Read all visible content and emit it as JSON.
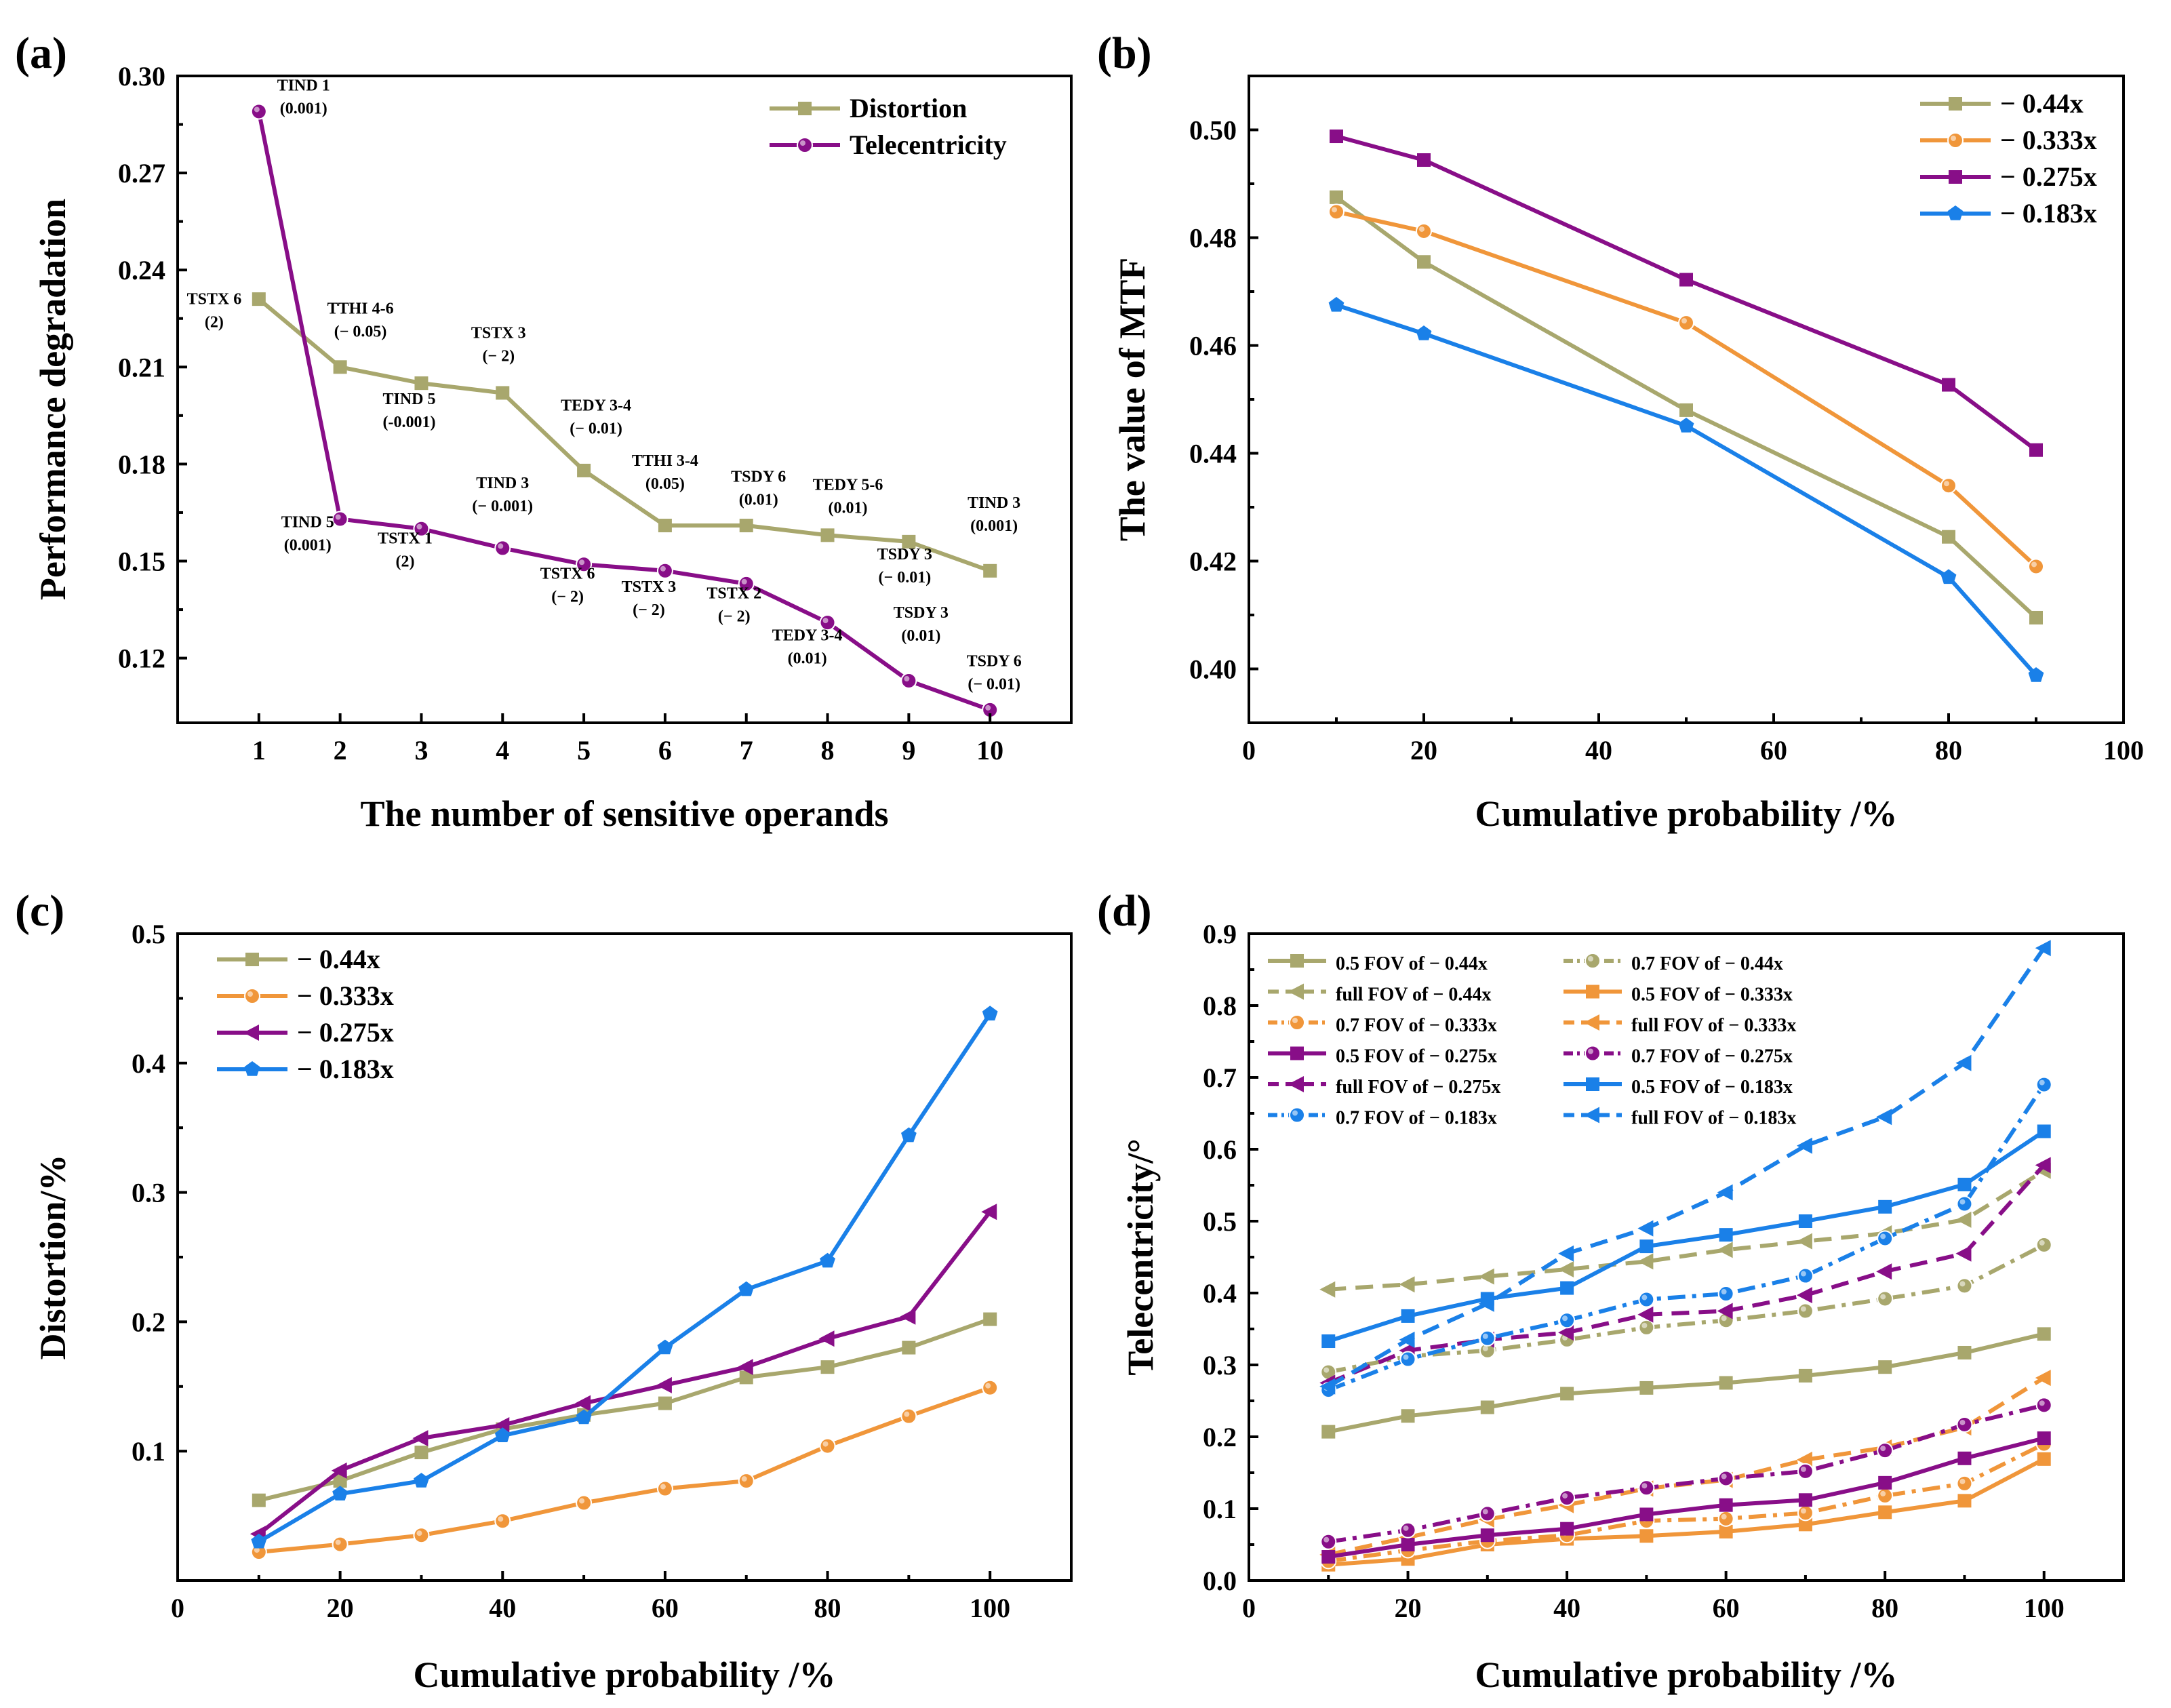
{
  "chart_data": [
    {
      "id": "a",
      "panel_label": "(a)",
      "type": "line",
      "xlabel": "The number of sensitive operands",
      "ylabel": "Performance degradation",
      "xlim": [
        0,
        11
      ],
      "ylim": [
        0.1,
        0.3
      ],
      "xticks": [
        1,
        2,
        3,
        4,
        5,
        6,
        7,
        8,
        9,
        10
      ],
      "yticks": [
        0.12,
        0.15,
        0.18,
        0.21,
        0.24,
        0.27,
        0.3
      ],
      "ytick_labels": [
        "0.12",
        "0.15",
        "0.18",
        "0.21",
        "0.24",
        "0.27",
        "0.30"
      ],
      "legend_position": "top-right",
      "series": [
        {
          "name": "Distortion",
          "color": "#a8a76d",
          "marker": "square",
          "dash": "solid",
          "x": [
            1,
            2,
            3,
            4,
            5,
            6,
            7,
            8,
            9,
            10
          ],
          "y": [
            0.231,
            0.21,
            0.205,
            0.202,
            0.178,
            0.161,
            0.161,
            0.158,
            0.156,
            0.147
          ]
        },
        {
          "name": "Telecentricity",
          "color": "#880e88",
          "marker": "circle",
          "dash": "solid",
          "x": [
            1,
            2,
            3,
            4,
            5,
            6,
            7,
            8,
            9,
            10
          ],
          "y": [
            0.289,
            0.163,
            0.16,
            0.154,
            0.149,
            0.147,
            0.143,
            0.131,
            0.113,
            0.104
          ]
        }
      ],
      "annotations": [
        {
          "lines": [
            "TSTX 6",
            "(2)"
          ],
          "x": 0.45,
          "y": 0.2295
        },
        {
          "lines": [
            "TIND 1",
            "(0.001)"
          ],
          "x": 1.55,
          "y": 0.2955
        },
        {
          "lines": [
            "TTHI 4-6",
            "(− 0.05)"
          ],
          "x": 2.25,
          "y": 0.2265
        },
        {
          "lines": [
            "TSTX 3",
            "(− 2)"
          ],
          "x": 3.95,
          "y": 0.219
        },
        {
          "lines": [
            "TIND 5",
            "(-0.001)"
          ],
          "x": 2.85,
          "y": 0.1985
        },
        {
          "lines": [
            "TEDY 3-4",
            "(− 0.01)"
          ],
          "x": 5.15,
          "y": 0.1965
        },
        {
          "lines": [
            "TTHI 3-4",
            "(0.05)"
          ],
          "x": 6.0,
          "y": 0.1795
        },
        {
          "lines": [
            "TSDY 6",
            "(0.01)"
          ],
          "x": 7.15,
          "y": 0.1745
        },
        {
          "lines": [
            "TEDY 5-6",
            "(0.01)"
          ],
          "x": 8.25,
          "y": 0.172
        },
        {
          "lines": [
            "TIND 3",
            "(− 0.001)"
          ],
          "x": 4.0,
          "y": 0.1725
        },
        {
          "lines": [
            "TIND 5",
            "(0.001)"
          ],
          "x": 1.6,
          "y": 0.1605
        },
        {
          "lines": [
            "TSTX 1",
            "(2)"
          ],
          "x": 2.8,
          "y": 0.1555
        },
        {
          "lines": [
            "TIND 3",
            "(0.001)"
          ],
          "x": 10.05,
          "y": 0.1665
        },
        {
          "lines": [
            "TSDY 3",
            "(− 0.01)"
          ],
          "x": 8.95,
          "y": 0.1505
        },
        {
          "lines": [
            "TSTX 6",
            "(− 2)"
          ],
          "x": 4.8,
          "y": 0.1445
        },
        {
          "lines": [
            "TSTX 3",
            "(− 2)"
          ],
          "x": 5.8,
          "y": 0.1405
        },
        {
          "lines": [
            "TSTX 2",
            "(− 2)"
          ],
          "x": 6.85,
          "y": 0.1385
        },
        {
          "lines": [
            "TEDY 3-4",
            "(0.01)"
          ],
          "x": 7.75,
          "y": 0.1255
        },
        {
          "lines": [
            "TSDY 3",
            "(0.01)"
          ],
          "x": 9.15,
          "y": 0.1325
        },
        {
          "lines": [
            "TSDY 6",
            "(− 0.01)"
          ],
          "x": 10.05,
          "y": 0.1175
        }
      ]
    },
    {
      "id": "b",
      "panel_label": "(b)",
      "type": "line",
      "xlabel": "Cumulative probability /%",
      "ylabel": "The value of MTF",
      "xlim": [
        0,
        100
      ],
      "ylim": [
        0.39,
        0.51
      ],
      "xticks": [
        0,
        20,
        40,
        60,
        80,
        100
      ],
      "yticks": [
        0.4,
        0.42,
        0.44,
        0.46,
        0.48,
        0.5
      ],
      "ytick_labels": [
        "0.40",
        "0.42",
        "0.44",
        "0.46",
        "0.48",
        "0.50"
      ],
      "legend_position": "top-right",
      "series": [
        {
          "name": "− 0.44x",
          "color": "#a8a76d",
          "marker": "square",
          "dash": "solid",
          "x": [
            10,
            20,
            50,
            80,
            90
          ],
          "y": [
            0.4875,
            0.4755,
            0.448,
            0.4245,
            0.4095
          ]
        },
        {
          "name": "− 0.333x",
          "color": "#f0963a",
          "marker": "circle",
          "dash": "solid",
          "x": [
            10,
            20,
            50,
            80,
            90
          ],
          "y": [
            0.4848,
            0.4812,
            0.4642,
            0.434,
            0.419
          ]
        },
        {
          "name": "− 0.275x",
          "color": "#880e88",
          "marker": "square",
          "dash": "solid",
          "x": [
            10,
            20,
            50,
            80,
            90
          ],
          "y": [
            0.4988,
            0.4944,
            0.4722,
            0.4527,
            0.4406
          ]
        },
        {
          "name": "− 0.183x",
          "color": "#1a80e8",
          "marker": "pentagon",
          "dash": "solid",
          "x": [
            10,
            20,
            50,
            80,
            90
          ],
          "y": [
            0.4675,
            0.4622,
            0.4451,
            0.417,
            0.3988
          ]
        }
      ]
    },
    {
      "id": "c",
      "panel_label": "(c)",
      "type": "line",
      "xlabel": "Cumulative probability /%",
      "ylabel": "Distortion/%",
      "xlim": [
        0,
        110
      ],
      "ylim": [
        0.0,
        0.5
      ],
      "xticks": [
        0,
        20,
        40,
        60,
        80,
        100
      ],
      "yticks": [
        0.1,
        0.2,
        0.3,
        0.4,
        0.5
      ],
      "ytick_labels": [
        "0.1",
        "0.2",
        "0.3",
        "0.4",
        "0.5"
      ],
      "legend_position": "top-left",
      "series": [
        {
          "name": "− 0.44x",
          "color": "#a8a76d",
          "marker": "square",
          "dash": "solid",
          "x": [
            10,
            20,
            30,
            40,
            50,
            60,
            70,
            80,
            90,
            100
          ],
          "y": [
            0.062,
            0.077,
            0.099,
            0.117,
            0.128,
            0.137,
            0.157,
            0.165,
            0.18,
            0.202
          ]
        },
        {
          "name": "− 0.333x",
          "color": "#f0963a",
          "marker": "circle",
          "dash": "solid",
          "x": [
            10,
            20,
            30,
            40,
            50,
            60,
            70,
            80,
            90,
            100
          ],
          "y": [
            0.022,
            0.028,
            0.035,
            0.046,
            0.06,
            0.071,
            0.077,
            0.104,
            0.127,
            0.149
          ]
        },
        {
          "name": "− 0.275x",
          "color": "#880e88",
          "marker": "tri-left",
          "dash": "solid",
          "x": [
            10,
            20,
            30,
            40,
            50,
            60,
            70,
            80,
            90,
            100
          ],
          "y": [
            0.036,
            0.085,
            0.11,
            0.12,
            0.137,
            0.151,
            0.165,
            0.187,
            0.204,
            0.285
          ]
        },
        {
          "name": "− 0.183x",
          "color": "#1a80e8",
          "marker": "pentagon",
          "dash": "solid",
          "x": [
            10,
            20,
            30,
            40,
            50,
            60,
            70,
            80,
            90,
            100
          ],
          "y": [
            0.03,
            0.067,
            0.077,
            0.112,
            0.126,
            0.18,
            0.225,
            0.247,
            0.344,
            0.438
          ]
        }
      ]
    },
    {
      "id": "d",
      "panel_label": "(d)",
      "type": "line",
      "xlabel": "Cumulative probability /%",
      "ylabel": "Telecentricity/°",
      "xlim": [
        0,
        110
      ],
      "ylim": [
        0.0,
        0.9
      ],
      "xticks": [
        0,
        20,
        40,
        60,
        80,
        100
      ],
      "yticks": [
        0.0,
        0.1,
        0.2,
        0.3,
        0.4,
        0.5,
        0.6,
        0.7,
        0.8,
        0.9
      ],
      "ytick_labels": [
        "0.0",
        "0.1",
        "0.2",
        "0.3",
        "0.4",
        "0.5",
        "0.6",
        "0.7",
        "0.8",
        "0.9"
      ],
      "legend_position": "top-left",
      "series": [
        {
          "name": "0.5 FOV of  − 0.44x",
          "color": "#a8a76d",
          "marker": "square",
          "dash": "solid",
          "x": [
            10,
            20,
            30,
            40,
            50,
            60,
            70,
            80,
            90,
            100
          ],
          "y": [
            0.207,
            0.229,
            0.241,
            0.26,
            0.268,
            0.275,
            0.285,
            0.297,
            0.317,
            0.343
          ]
        },
        {
          "name": "0.7 FOV of  − 0.44x",
          "color": "#a8a76d",
          "marker": "circle",
          "dash": "dashdot",
          "x": [
            10,
            20,
            30,
            40,
            50,
            60,
            70,
            80,
            90,
            100
          ],
          "y": [
            0.29,
            0.312,
            0.32,
            0.335,
            0.352,
            0.362,
            0.375,
            0.392,
            0.41,
            0.467
          ]
        },
        {
          "name": "full FOV of  − 0.44x",
          "color": "#a8a76d",
          "marker": "tri-left",
          "dash": "dashed",
          "x": [
            10,
            20,
            30,
            40,
            50,
            60,
            70,
            80,
            90,
            100
          ],
          "y": [
            0.405,
            0.412,
            0.423,
            0.433,
            0.444,
            0.46,
            0.472,
            0.483,
            0.502,
            0.57
          ]
        },
        {
          "name": "0.5 FOV of  − 0.333x",
          "color": "#f0963a",
          "marker": "square",
          "dash": "solid",
          "x": [
            10,
            20,
            30,
            40,
            50,
            60,
            70,
            80,
            90,
            100
          ],
          "y": [
            0.022,
            0.03,
            0.05,
            0.058,
            0.062,
            0.068,
            0.078,
            0.095,
            0.111,
            0.169
          ]
        },
        {
          "name": "0.7 FOV of  − 0.333x",
          "color": "#f0963a",
          "marker": "circle",
          "dash": "dashdot",
          "x": [
            10,
            20,
            30,
            40,
            50,
            60,
            70,
            80,
            90,
            100
          ],
          "y": [
            0.027,
            0.042,
            0.055,
            0.063,
            0.083,
            0.086,
            0.094,
            0.118,
            0.135,
            0.19
          ]
        },
        {
          "name": "full FOV of  − 0.333x",
          "color": "#f0963a",
          "marker": "tri-left",
          "dash": "dashed",
          "x": [
            10,
            20,
            30,
            40,
            50,
            60,
            70,
            80,
            90,
            100
          ],
          "y": [
            0.036,
            0.06,
            0.085,
            0.105,
            0.128,
            0.14,
            0.168,
            0.185,
            0.213,
            0.282
          ]
        },
        {
          "name": "0.5 FOV of  − 0.275x",
          "color": "#880e88",
          "marker": "square",
          "dash": "solid",
          "x": [
            10,
            20,
            30,
            40,
            50,
            60,
            70,
            80,
            90,
            100
          ],
          "y": [
            0.033,
            0.05,
            0.063,
            0.072,
            0.092,
            0.105,
            0.112,
            0.136,
            0.17,
            0.198
          ]
        },
        {
          "name": "0.7 FOV of  − 0.275x",
          "color": "#880e88",
          "marker": "circle",
          "dash": "dashdot",
          "x": [
            10,
            20,
            30,
            40,
            50,
            60,
            70,
            80,
            90,
            100
          ],
          "y": [
            0.054,
            0.07,
            0.093,
            0.115,
            0.129,
            0.142,
            0.152,
            0.181,
            0.217,
            0.244
          ]
        },
        {
          "name": "full FOV of  − 0.275x",
          "color": "#880e88",
          "marker": "tri-left",
          "dash": "dashed",
          "x": [
            10,
            20,
            30,
            40,
            50,
            60,
            70,
            80,
            90,
            100
          ],
          "y": [
            0.275,
            0.32,
            0.335,
            0.345,
            0.37,
            0.375,
            0.397,
            0.43,
            0.455,
            0.578
          ]
        },
        {
          "name": "0.5 FOV of  − 0.183x",
          "color": "#1a80e8",
          "marker": "square",
          "dash": "solid",
          "x": [
            10,
            20,
            30,
            40,
            50,
            60,
            70,
            80,
            90,
            100
          ],
          "y": [
            0.333,
            0.368,
            0.392,
            0.407,
            0.465,
            0.481,
            0.5,
            0.52,
            0.551,
            0.625
          ]
        },
        {
          "name": "0.7 FOV of  − 0.183x",
          "color": "#1a80e8",
          "marker": "circle",
          "dash": "dashdot",
          "x": [
            10,
            20,
            30,
            40,
            50,
            60,
            70,
            80,
            90,
            100
          ],
          "y": [
            0.265,
            0.308,
            0.337,
            0.362,
            0.391,
            0.399,
            0.424,
            0.476,
            0.524,
            0.69
          ]
        },
        {
          "name": "full FOV of  − 0.183x",
          "color": "#1a80e8",
          "marker": "tri-left",
          "dash": "dashed",
          "x": [
            10,
            20,
            30,
            40,
            50,
            60,
            70,
            80,
            90,
            100
          ],
          "y": [
            0.27,
            0.335,
            0.385,
            0.455,
            0.49,
            0.54,
            0.605,
            0.645,
            0.72,
            0.88
          ]
        }
      ]
    }
  ]
}
